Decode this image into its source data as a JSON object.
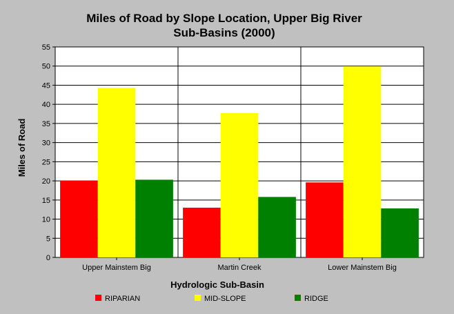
{
  "chart_data": {
    "type": "bar",
    "title_lines": [
      "Miles of Road by Slope Location, Upper Big River",
      "Sub-Basins (2000)"
    ],
    "xlabel": "Hydrologic Sub-Basin",
    "ylabel": "Miles of Road",
    "categories": [
      "Upper Mainstem Big",
      "Martin Creek",
      "Lower Mainstem Big"
    ],
    "series": [
      {
        "name": "RIPARIAN",
        "color": "#ff0000",
        "values": [
          20.1,
          13.0,
          19.6
        ]
      },
      {
        "name": "MID-SLOPE",
        "color": "#ffff00",
        "values": [
          44.3,
          37.7,
          49.9
        ]
      },
      {
        "name": "RIDGE",
        "color": "#008000",
        "values": [
          20.3,
          15.8,
          12.8
        ]
      }
    ],
    "ylim": [
      0,
      55
    ],
    "yticks": [
      0,
      5,
      10,
      15,
      20,
      25,
      30,
      35,
      40,
      45,
      50,
      55
    ],
    "grid": "horizontal",
    "legend_position": "bottom"
  }
}
